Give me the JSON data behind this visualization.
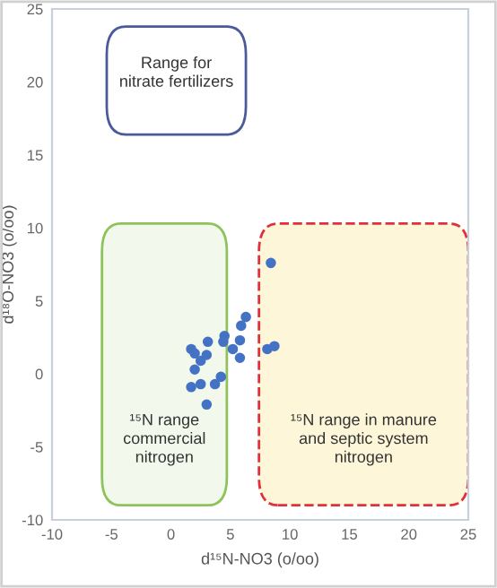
{
  "chart_data": {
    "type": "scatter",
    "xlabel": "d¹⁵N-NO3 (o/oo)",
    "ylabel": "d¹⁸O-NO3 (o/oo)",
    "x": [
      1.7,
      2.0,
      2.0,
      2.5,
      1.7,
      2.5,
      3.0,
      3.0,
      3.1,
      3.7,
      4.2,
      4.4,
      4.5,
      5.2,
      5.8,
      5.8,
      5.9,
      6.3,
      8.1,
      8.7,
      8.4
    ],
    "series": [
      {
        "color": "#4472c4",
        "values": [
          1.7,
          1.4,
          0.3,
          0.9,
          -0.9,
          -0.7,
          -2.1,
          1.3,
          2.2,
          -0.7,
          -0.2,
          2.2,
          2.6,
          1.7,
          2.3,
          1.1,
          3.3,
          3.9,
          1.7,
          1.9,
          7.6
        ]
      }
    ],
    "marker": "circle",
    "grid": false,
    "xlim": [
      -10,
      25
    ],
    "xticks": [
      -10,
      -5,
      0,
      5,
      10,
      15,
      20,
      25
    ],
    "ylim": [
      -10,
      25
    ],
    "yticks": [
      -10,
      -5,
      0,
      5,
      10,
      15,
      20,
      25
    ],
    "bands": [
      {
        "axis": "y",
        "from": 16.4,
        "to": 23.8,
        "label": "Range for nitrate fertilizers",
        "color": "#4a5a9a"
      },
      {
        "axis": "x",
        "from": -5.8,
        "to": 4.7,
        "label": "¹⁵N range commercial nitrogen",
        "color": "#8dc35a"
      },
      {
        "axis": "x",
        "from": 7.4,
        "to": 25,
        "label": "¹⁵N range in manure and septic system nitrogen",
        "color": "#e0303a"
      }
    ]
  }
}
